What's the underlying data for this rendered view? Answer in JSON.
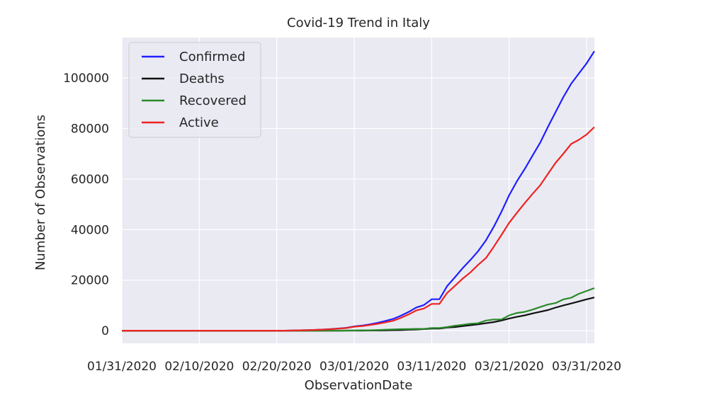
{
  "chart_data": {
    "type": "line",
    "title": "Covid-19 Trend in Italy",
    "xlabel": "ObservationDate",
    "ylabel": "Number of Observations",
    "x_tick_labels": [
      "01/31/2020",
      "02/10/2020",
      "02/20/2020",
      "03/01/2020",
      "03/11/2020",
      "03/21/2020",
      "03/31/2020"
    ],
    "y_tick_labels": [
      "0",
      "20000",
      "40000",
      "60000",
      "80000",
      "100000"
    ],
    "y_ticks": [
      0,
      20000,
      40000,
      60000,
      80000,
      100000
    ],
    "xlim": [
      "01/31/2020",
      "04/01/2020"
    ],
    "ylim": [
      -5000,
      116000
    ],
    "grid": true,
    "legend_position": "top-left",
    "background_color": "#eaeaf2",
    "x": [
      "01/31/2020",
      "02/10/2020",
      "02/20/2020",
      "02/21/2020",
      "02/22/2020",
      "02/23/2020",
      "02/24/2020",
      "02/25/2020",
      "02/26/2020",
      "02/27/2020",
      "02/28/2020",
      "02/29/2020",
      "03/01/2020",
      "03/02/2020",
      "03/03/2020",
      "03/04/2020",
      "03/05/2020",
      "03/06/2020",
      "03/07/2020",
      "03/08/2020",
      "03/09/2020",
      "03/10/2020",
      "03/11/2020",
      "03/12/2020",
      "03/13/2020",
      "03/14/2020",
      "03/15/2020",
      "03/16/2020",
      "03/17/2020",
      "03/18/2020",
      "03/19/2020",
      "03/20/2020",
      "03/21/2020",
      "03/22/2020",
      "03/23/2020",
      "03/24/2020",
      "03/25/2020",
      "03/26/2020",
      "03/27/2020",
      "03/28/2020",
      "03/29/2020",
      "03/30/2020",
      "03/31/2020",
      "04/01/2020"
    ],
    "series": [
      {
        "name": "Confirmed",
        "color": "#1f1fff",
        "values": [
          2,
          3,
          3,
          20,
          62,
          155,
          229,
          322,
          453,
          655,
          888,
          1128,
          1694,
          2036,
          2502,
          3089,
          3858,
          4636,
          5883,
          7375,
          9172,
          10149,
          12462,
          12462,
          17660,
          21157,
          24747,
          27980,
          31506,
          35713,
          41035,
          47021,
          53578,
          59138,
          63927,
          69176,
          74386,
          80589,
          86498,
          92472,
          97689,
          101739,
          105792,
          110574
        ]
      },
      {
        "name": "Deaths",
        "color": "#111111",
        "values": [
          0,
          0,
          0,
          1,
          2,
          3,
          7,
          10,
          12,
          17,
          21,
          29,
          34,
          52,
          79,
          107,
          148,
          197,
          233,
          366,
          463,
          631,
          827,
          827,
          1266,
          1441,
          1809,
          2158,
          2503,
          2978,
          3405,
          4032,
          4825,
          5476,
          6077,
          6820,
          7503,
          8165,
          9134,
          10023,
          10779,
          11591,
          12428,
          13155
        ]
      },
      {
        "name": "Recovered",
        "color": "#2a8a2a",
        "values": [
          0,
          0,
          0,
          0,
          1,
          2,
          1,
          1,
          3,
          45,
          46,
          46,
          83,
          149,
          160,
          276,
          414,
          523,
          589,
          622,
          724,
          724,
          1045,
          1045,
          1439,
          1966,
          2335,
          2749,
          2941,
          4025,
          4440,
          4440,
          6072,
          7024,
          7432,
          8326,
          9362,
          10361,
          10950,
          12384,
          13030,
          14620,
          15729,
          16847
        ]
      },
      {
        "name": "Active",
        "color": "#ee2222",
        "values": [
          2,
          3,
          3,
          19,
          59,
          150,
          221,
          311,
          438,
          593,
          821,
          1053,
          1577,
          1835,
          2263,
          2706,
          3296,
          3916,
          5061,
          6387,
          7985,
          8794,
          10590,
          10590,
          14955,
          17750,
          20603,
          23073,
          26062,
          28710,
          33190,
          37860,
          42681,
          46638,
          50418,
          54030,
          57521,
          62013,
          66414,
          70065,
          73880,
          75528,
          77635,
          80572
        ]
      }
    ]
  }
}
